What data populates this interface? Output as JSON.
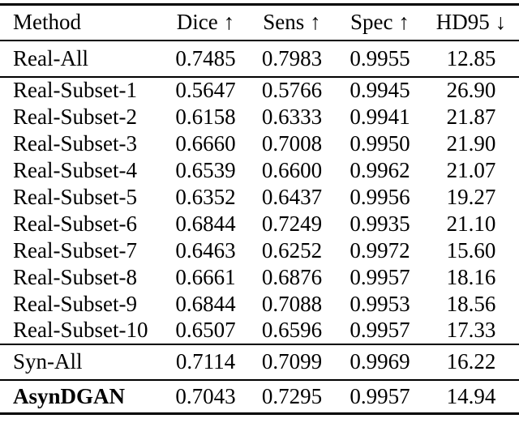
{
  "table": {
    "columns": [
      {
        "label": "Method",
        "arrow": ""
      },
      {
        "label": "Dice",
        "arrow": "↑"
      },
      {
        "label": "Sens",
        "arrow": "↑"
      },
      {
        "label": "Spec",
        "arrow": "↑"
      },
      {
        "label": "HD95",
        "arrow": "↓"
      }
    ],
    "rows": {
      "real_all": {
        "method": "Real-All",
        "values": [
          "0.7485",
          "0.7983",
          "0.9955",
          "12.85"
        ]
      },
      "subset_1": {
        "method": "Real-Subset-1",
        "values": [
          "0.5647",
          "0.5766",
          "0.9945",
          "26.90"
        ]
      },
      "subset_2": {
        "method": "Real-Subset-2",
        "values": [
          "0.6158",
          "0.6333",
          "0.9941",
          "21.87"
        ]
      },
      "subset_3": {
        "method": "Real-Subset-3",
        "values": [
          "0.6660",
          "0.7008",
          "0.9950",
          "21.90"
        ]
      },
      "subset_4": {
        "method": "Real-Subset-4",
        "values": [
          "0.6539",
          "0.6600",
          "0.9962",
          "21.07"
        ]
      },
      "subset_5": {
        "method": "Real-Subset-5",
        "values": [
          "0.6352",
          "0.6437",
          "0.9956",
          "19.27"
        ]
      },
      "subset_6": {
        "method": "Real-Subset-6",
        "values": [
          "0.6844",
          "0.7249",
          "0.9935",
          "21.10"
        ]
      },
      "subset_7": {
        "method": "Real-Subset-7",
        "values": [
          "0.6463",
          "0.6252",
          "0.9972",
          "15.60"
        ]
      },
      "subset_8": {
        "method": "Real-Subset-8",
        "values": [
          "0.6661",
          "0.6876",
          "0.9957",
          "18.16"
        ]
      },
      "subset_9": {
        "method": "Real-Subset-9",
        "values": [
          "0.6844",
          "0.7088",
          "0.9953",
          "18.56"
        ]
      },
      "subset_10": {
        "method": "Real-Subset-10",
        "values": [
          "0.6507",
          "0.6596",
          "0.9957",
          "17.33"
        ]
      },
      "syn_all": {
        "method": "Syn-All",
        "values": [
          "0.7114",
          "0.7099",
          "0.9969",
          "16.22"
        ]
      },
      "asyndgan": {
        "method": "AsynDGAN",
        "values": [
          "0.7043",
          "0.7295",
          "0.9957",
          "14.94"
        ]
      }
    },
    "text_color": "#000000",
    "background_color": "#ffffff"
  }
}
